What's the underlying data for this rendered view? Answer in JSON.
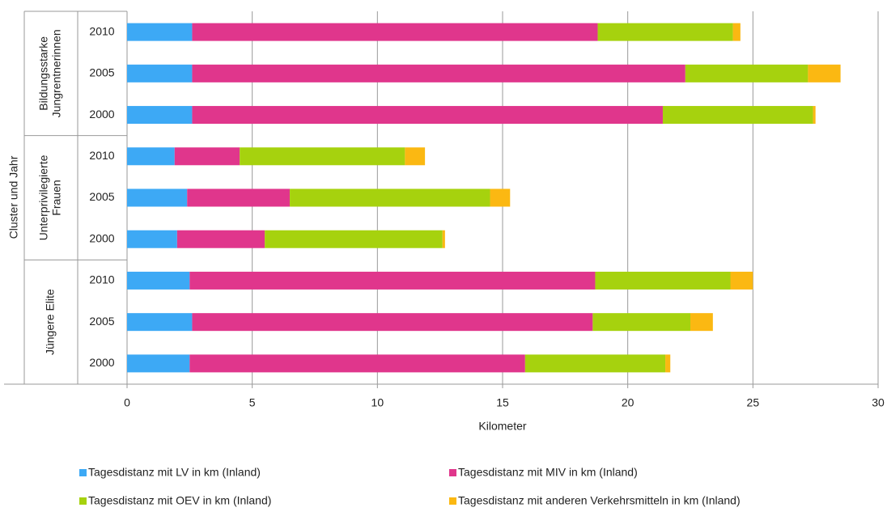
{
  "chart_data": {
    "type": "stacked-bar-horizontal",
    "y_label": "Cluster und Jahr",
    "x_label": "Kilometer",
    "groups": [
      {
        "label": [
          "Bildungsstarke",
          "Jungrentnerinnen"
        ],
        "categories": [
          "2010",
          "2005",
          "2000"
        ]
      },
      {
        "label": [
          "Unterprivilegierte",
          "Frauen"
        ],
        "categories": [
          "2010",
          "2005",
          "2000"
        ]
      },
      {
        "label": [
          "Jüngere Elite"
        ],
        "categories": [
          "2010",
          "2005",
          "2000"
        ]
      }
    ],
    "series": [
      {
        "name": "Tagesdistanz mit LV in km (Inland)",
        "color": "#3da9f5",
        "values": [
          2.6,
          2.6,
          2.6,
          1.9,
          2.4,
          2.0,
          2.5,
          2.6,
          2.5
        ]
      },
      {
        "name": "Tagesdistanz mit MIV in km (Inland)",
        "color": "#e0368c",
        "values": [
          16.2,
          19.7,
          18.8,
          2.6,
          4.1,
          3.5,
          16.2,
          16.0,
          13.4
        ]
      },
      {
        "name": "Tagesdistanz mit OEV in km (Inland)",
        "color": "#a6d20e",
        "values": [
          5.4,
          4.9,
          6.0,
          6.6,
          8.0,
          7.1,
          5.4,
          3.9,
          5.6
        ]
      },
      {
        "name": "Tagesdistanz mit anderen Verkehrsmitteln in km (Inland)",
        "color": "#fbb812",
        "values": [
          0.3,
          1.3,
          0.1,
          0.8,
          0.8,
          0.1,
          0.9,
          0.9,
          0.2
        ]
      }
    ],
    "xlim": [
      0,
      30
    ],
    "xticks": [
      0,
      5,
      10,
      15,
      20,
      25,
      30
    ],
    "grid": true
  }
}
